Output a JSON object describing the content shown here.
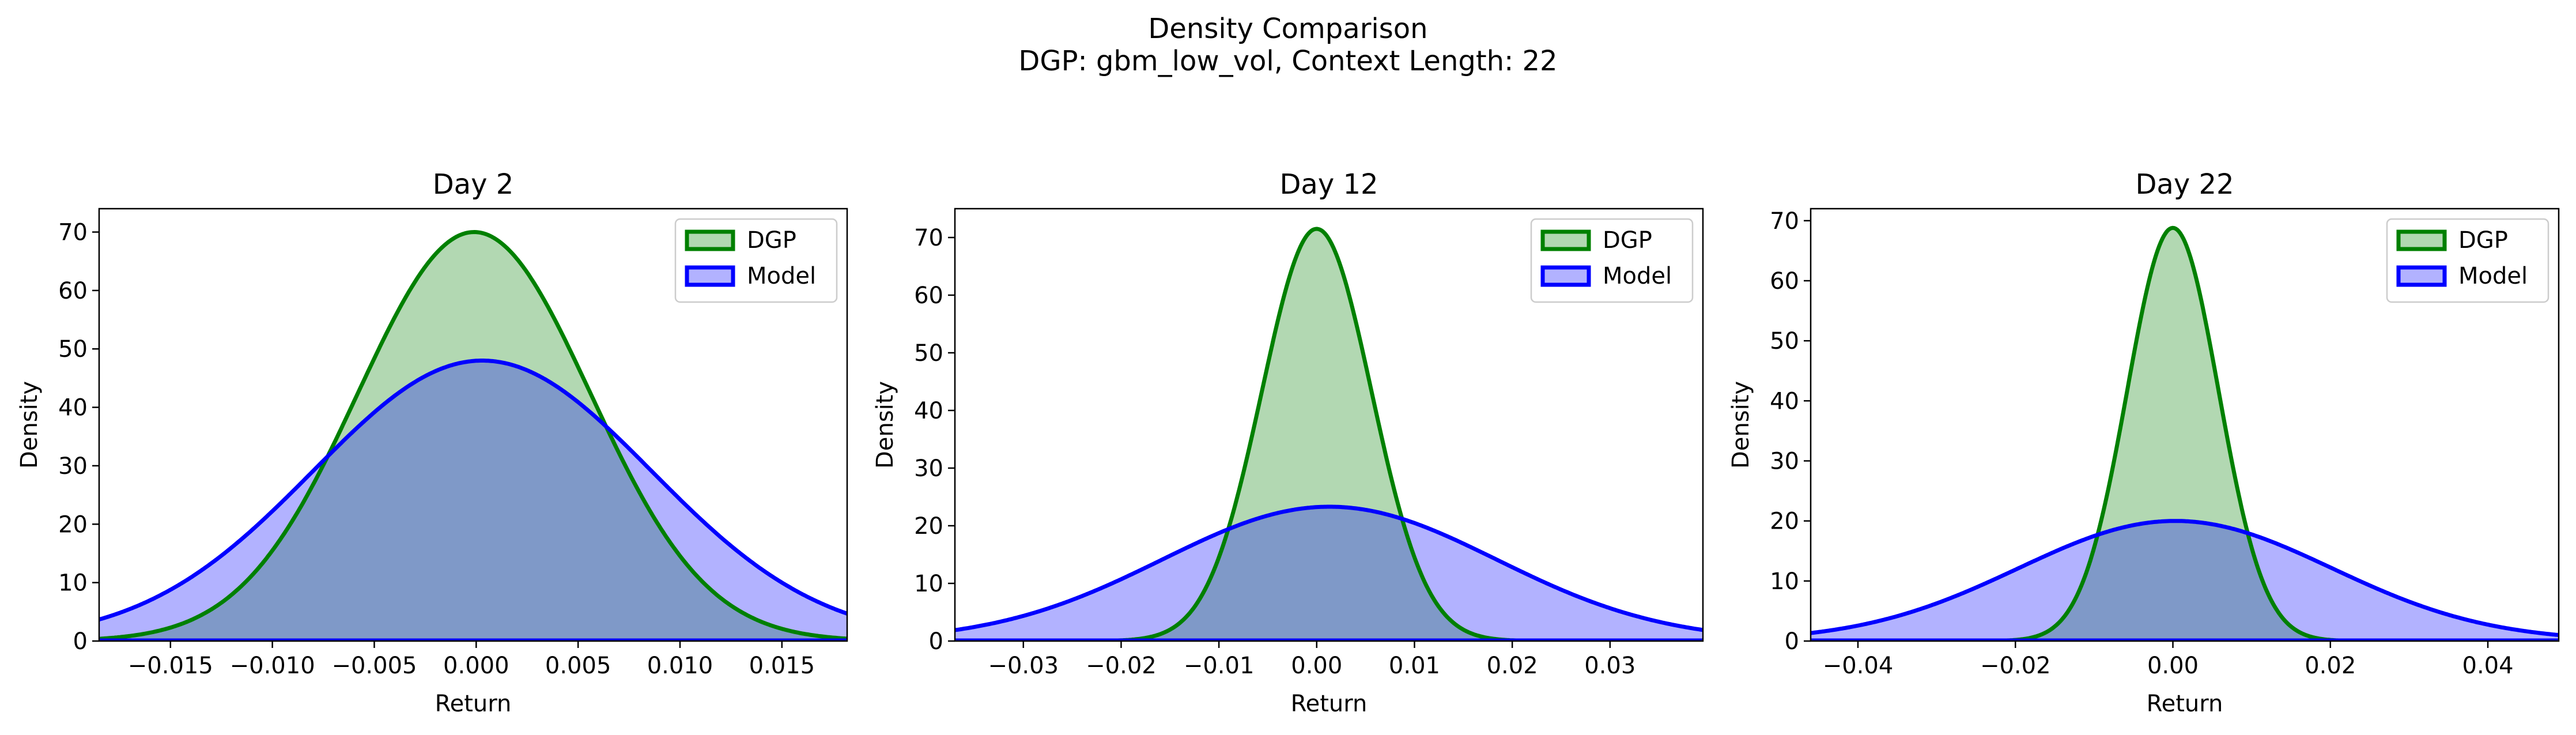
{
  "figure": {
    "title_line1": "Density Comparison",
    "title_line2": "DGP: gbm_low_vol, Context Length: 22"
  },
  "colors": {
    "dgp_line": "#008000",
    "dgp_fill": "#b2d8b2",
    "model_line": "#0000ff",
    "model_fill": "#b2b2ff",
    "overlap_fill": "#7f99c8"
  },
  "chart_data": [
    {
      "type": "area",
      "title": "Day 2",
      "xlabel": "Return",
      "ylabel": "Density",
      "xlim": [
        -0.0185,
        0.0182
      ],
      "ylim": [
        0,
        74
      ],
      "xticks": [
        -0.015,
        -0.01,
        -0.005,
        0.0,
        0.005,
        0.01,
        0.015
      ],
      "xtick_labels": [
        "−0.015",
        "−0.010",
        "−0.005",
        "0.000",
        "0.005",
        "0.010",
        "0.015"
      ],
      "yticks": [
        0,
        10,
        20,
        30,
        40,
        50,
        60,
        70
      ],
      "ytick_labels": [
        "0",
        "10",
        "20",
        "30",
        "40",
        "50",
        "60",
        "70"
      ],
      "legend": "top-right",
      "grid": false,
      "series": [
        {
          "name": "DGP",
          "kind": "normal_density",
          "mean": -0.0001,
          "std": 0.0057,
          "peak": 70.0
        },
        {
          "name": "Model",
          "kind": "normal_density",
          "mean": 0.0003,
          "std": 0.0083,
          "peak": 48.0
        }
      ]
    },
    {
      "type": "area",
      "title": "Day 12",
      "xlabel": "Return",
      "ylabel": "Density",
      "xlim": [
        -0.037,
        0.0395
      ],
      "ylim": [
        0,
        75
      ],
      "xticks": [
        -0.03,
        -0.02,
        -0.01,
        0.0,
        0.01,
        0.02,
        0.03
      ],
      "xtick_labels": [
        "−0.03",
        "−0.02",
        "−0.01",
        "0.00",
        "0.01",
        "0.02",
        "0.03"
      ],
      "yticks": [
        0,
        10,
        20,
        30,
        40,
        50,
        60,
        70
      ],
      "ytick_labels": [
        "0",
        "10",
        "20",
        "30",
        "40",
        "50",
        "60",
        "70"
      ],
      "legend": "top-right",
      "grid": false,
      "series": [
        {
          "name": "DGP",
          "kind": "normal_density",
          "mean": 0.0,
          "std": 0.0056,
          "peak": 71.5
        },
        {
          "name": "Model",
          "kind": "normal_density",
          "mean": 0.0013,
          "std": 0.0171,
          "peak": 23.3
        }
      ]
    },
    {
      "type": "area",
      "title": "Day 22",
      "xlabel": "Return",
      "ylabel": "Density",
      "xlim": [
        -0.046,
        0.049
      ],
      "ylim": [
        0,
        72
      ],
      "xticks": [
        -0.04,
        -0.02,
        0.0,
        0.02,
        0.04
      ],
      "xtick_labels": [
        "−0.04",
        "−0.02",
        "0.00",
        "0.02",
        "0.04"
      ],
      "yticks": [
        0,
        10,
        20,
        30,
        40,
        50,
        60,
        70
      ],
      "ytick_labels": [
        "0",
        "10",
        "20",
        "30",
        "40",
        "50",
        "60",
        "70"
      ],
      "legend": "top-right",
      "grid": false,
      "series": [
        {
          "name": "DGP",
          "kind": "normal_density",
          "mean": 0.0,
          "std": 0.0058,
          "peak": 68.8
        },
        {
          "name": "Model",
          "kind": "normal_density",
          "mean": 0.0003,
          "std": 0.0199,
          "peak": 20.0
        }
      ]
    }
  ]
}
